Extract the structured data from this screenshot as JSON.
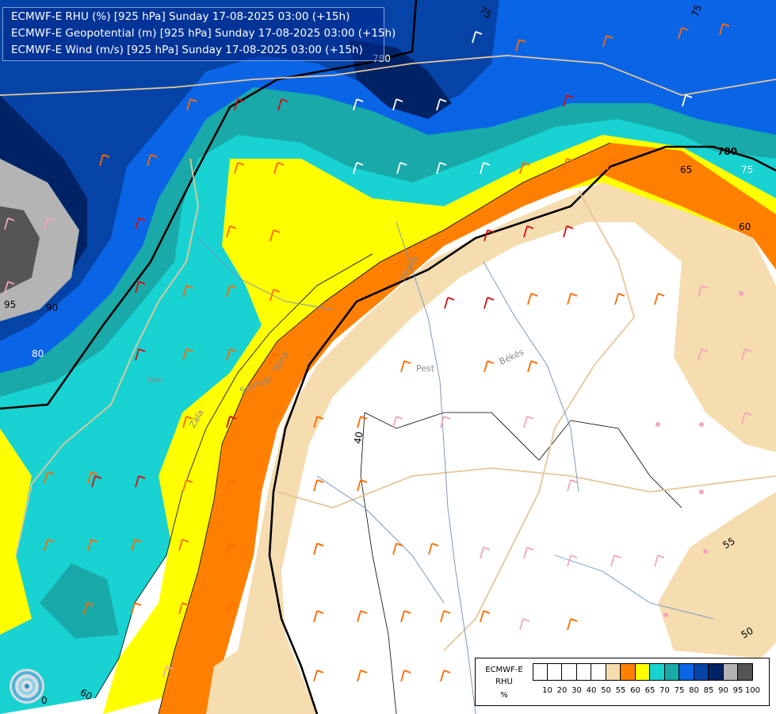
{
  "header": {
    "line1": "ECMWF-E RHU (%) [925 hPa] Sunday 17-08-2025 03:00 (+15h)",
    "line2": "ECMWF-E Geopotential (m) [925 hPa] Sunday 17-08-2025 03:00 (+15h)",
    "line3": "ECMWF-E Wind (m/s) [925 hPa] Sunday 17-08-2025 03:00 (+15h)"
  },
  "legend": {
    "title1": "ECMWF-E",
    "title2": "RHU",
    "unit": "%",
    "levels": [
      "10",
      "20",
      "30",
      "40",
      "50",
      "55",
      "60",
      "65",
      "70",
      "75",
      "80",
      "85",
      "90",
      "95",
      "100"
    ],
    "colors": [
      "#ffffff",
      "#ffffff",
      "#ffffff",
      "#ffffff",
      "#ffffff",
      "#f5ddb0",
      "#ff8000",
      "#ffff00",
      "#19d2d2",
      "#19a9a9",
      "#0a64e6",
      "#0544a6",
      "#002366",
      "#b4b4b4",
      "#555555"
    ]
  },
  "contour_labels": {
    "geo1": "780",
    "geo2": "780",
    "rh": [
      "75",
      "75",
      "75",
      "65",
      "60",
      "95",
      "90",
      "80",
      "40",
      "50",
      "55",
      "60",
      "0"
    ]
  },
  "place_labels": [
    "Pest",
    "Békés",
    "Vas",
    "Somogy",
    "Zala",
    "Tolna",
    "Heves"
  ],
  "logo": "ogimet-logo-icon"
}
